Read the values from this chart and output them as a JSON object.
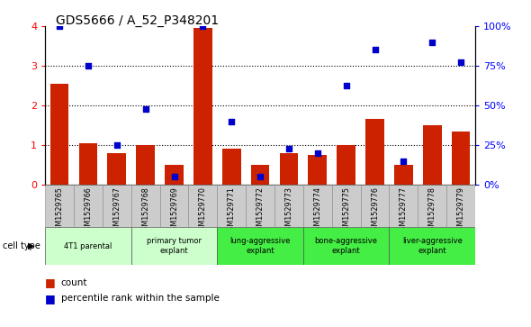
{
  "title": "GDS5666 / A_52_P348201",
  "samples": [
    "GSM1529765",
    "GSM1529766",
    "GSM1529767",
    "GSM1529768",
    "GSM1529769",
    "GSM1529770",
    "GSM1529771",
    "GSM1529772",
    "GSM1529773",
    "GSM1529774",
    "GSM1529775",
    "GSM1529776",
    "GSM1529777",
    "GSM1529778",
    "GSM1529779"
  ],
  "counts": [
    2.55,
    1.05,
    0.8,
    1.0,
    0.5,
    3.95,
    0.9,
    0.5,
    0.8,
    0.75,
    1.0,
    1.65,
    0.5,
    1.5,
    1.35
  ],
  "percentiles": [
    100.0,
    75.0,
    25.0,
    47.5,
    5.0,
    100.0,
    40.0,
    5.0,
    22.5,
    20.0,
    62.5,
    85.0,
    15.0,
    90.0,
    77.5
  ],
  "bar_color": "#cc2200",
  "dot_color": "#0000cc",
  "ylim_left": [
    0,
    4
  ],
  "ylim_right": [
    0,
    100
  ],
  "yticks_left": [
    0,
    1,
    2,
    3,
    4
  ],
  "yticks_right": [
    0,
    25,
    50,
    75,
    100
  ],
  "ytick_labels_right": [
    "0%",
    "25%",
    "50%",
    "75%",
    "100%"
  ],
  "group_boundaries": [
    {
      "start": 0,
      "end": 2,
      "label": "4T1 parental",
      "color": "#ccffcc"
    },
    {
      "start": 3,
      "end": 5,
      "label": "primary tumor\nexplant",
      "color": "#ccffcc"
    },
    {
      "start": 6,
      "end": 8,
      "label": "lung-aggressive\nexplant",
      "color": "#44ee44"
    },
    {
      "start": 9,
      "end": 11,
      "label": "bone-aggressive\nexplant",
      "color": "#44ee44"
    },
    {
      "start": 12,
      "end": 14,
      "label": "liver-aggressive\nexplant",
      "color": "#44ee44"
    }
  ],
  "cell_type_label": "cell type",
  "legend_count_label": "count",
  "legend_percentile_label": "percentile rank within the sample",
  "tick_bg_color": "#cccccc",
  "group1_color": "#ccffcc",
  "group2_color": "#44ee44"
}
